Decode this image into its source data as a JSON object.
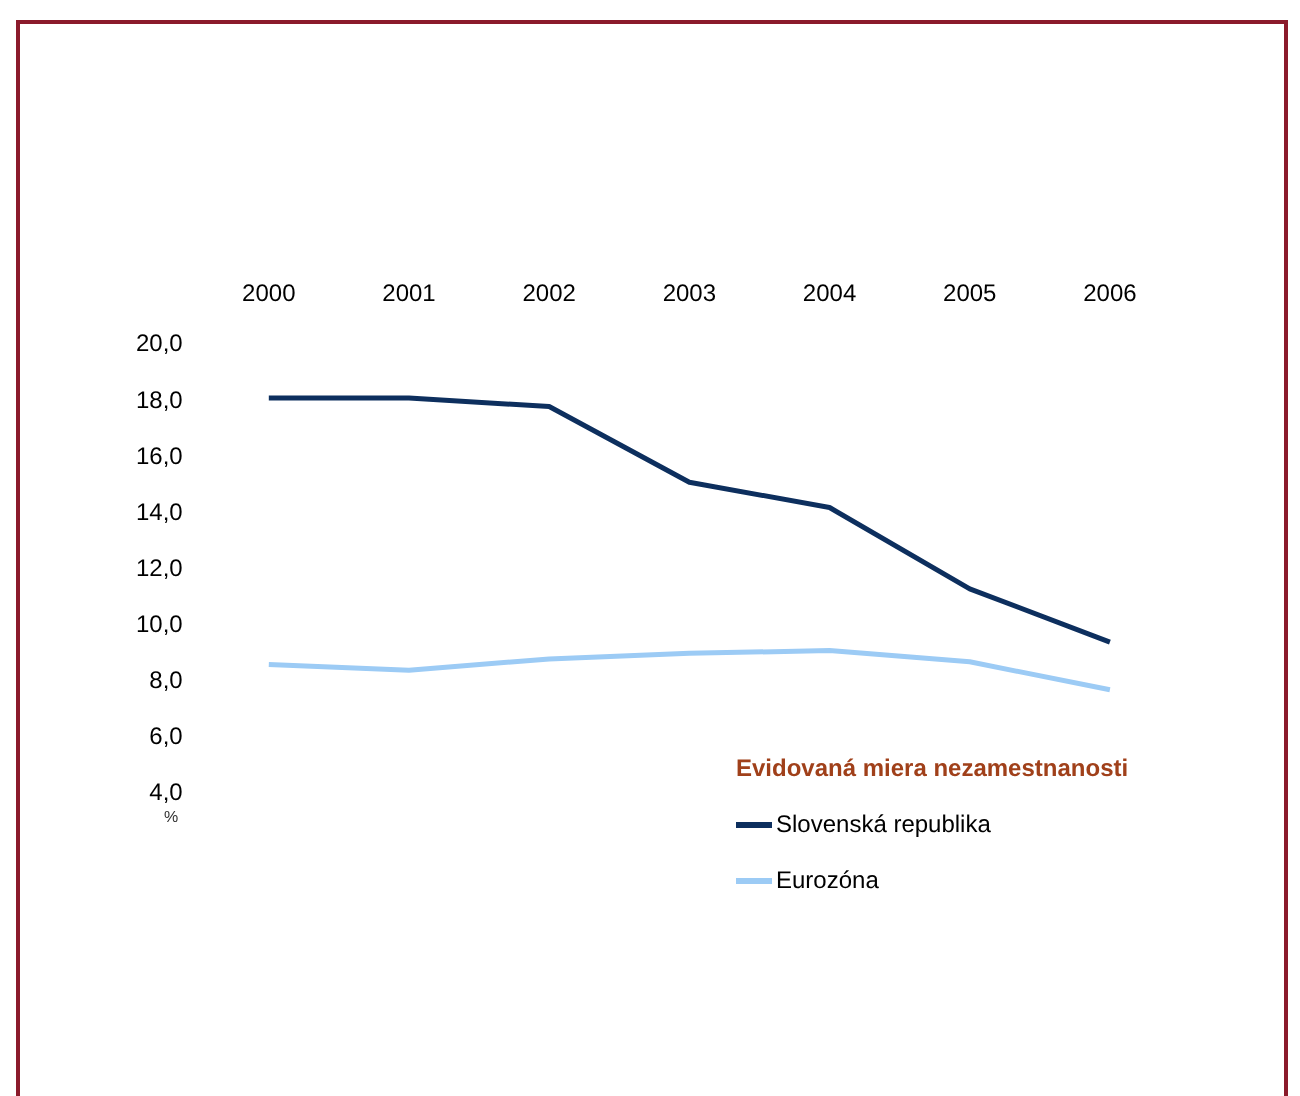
{
  "chart_data": {
    "type": "line",
    "categories": [
      "2000",
      "2001",
      "2002",
      "2003",
      "2004",
      "2005",
      "2006"
    ],
    "series": [
      {
        "name": "Slovenská republika",
        "color": "#0d2f5e",
        "values": [
          18.1,
          18.1,
          17.8,
          15.1,
          14.2,
          11.3,
          9.4
        ]
      },
      {
        "name": "Eurozóna",
        "color": "#9ccbf5",
        "values": [
          8.6,
          8.4,
          8.8,
          9.0,
          9.1,
          8.7,
          7.7
        ]
      }
    ],
    "ylabel": "%",
    "legend_title": "Evidovaná miera nezamestnanosti",
    "legend": "bottom right",
    "grid": false,
    "marker": "none",
    "line_style": "solid",
    "ylim": [
      4,
      20
    ],
    "yticks": [
      {
        "value": 4,
        "label": "4,0"
      },
      {
        "value": 6,
        "label": "6,0"
      },
      {
        "value": 8,
        "label": "8,0"
      },
      {
        "value": 10,
        "label": "10,0"
      },
      {
        "value": 12,
        "label": "12,0"
      },
      {
        "value": 14,
        "label": "14,0"
      },
      {
        "value": 16,
        "label": "16,0"
      },
      {
        "value": 18,
        "label": "18,0"
      },
      {
        "value": 20,
        "label": "20,0"
      }
    ]
  }
}
